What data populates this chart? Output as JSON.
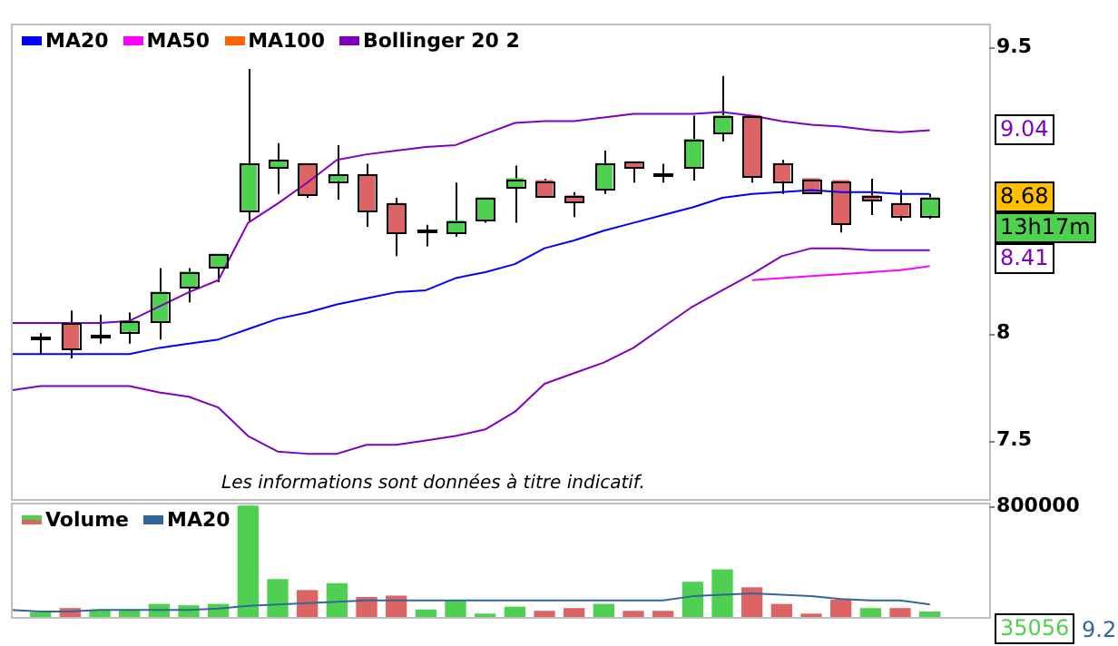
{
  "chart_data": [
    {
      "type": "candlestick",
      "categories": [
        null,
        null,
        null,
        null,
        null,
        null,
        null,
        null,
        null,
        null,
        null,
        null,
        null,
        null,
        null,
        null,
        null,
        null,
        null,
        null,
        null,
        null,
        null,
        null,
        null,
        null,
        null,
        null,
        null,
        null,
        null,
        null,
        null,
        null
      ],
      "ohlc": [
        null,
        [
          7.98,
          8.0,
          7.9,
          7.98
        ],
        [
          8.05,
          8.11,
          7.88,
          7.93
        ],
        [
          7.99,
          8.09,
          7.95,
          7.99
        ],
        [
          8.01,
          8.1,
          7.95,
          8.06
        ],
        [
          8.06,
          8.32,
          7.97,
          8.2
        ],
        [
          8.23,
          8.32,
          8.15,
          8.3
        ],
        [
          8.33,
          8.39,
          8.25,
          8.39
        ],
        [
          8.61,
          9.38,
          8.56,
          8.86
        ],
        [
          8.84,
          8.97,
          8.7,
          8.88
        ],
        [
          8.86,
          8.86,
          8.68,
          8.7
        ],
        [
          8.77,
          8.96,
          8.67,
          8.8
        ],
        [
          8.8,
          8.86,
          8.53,
          8.61
        ],
        [
          8.65,
          8.68,
          8.38,
          8.5
        ],
        [
          8.51,
          8.54,
          8.43,
          8.51
        ],
        [
          8.5,
          8.76,
          8.48,
          8.56
        ],
        [
          8.57,
          8.68,
          8.55,
          8.68
        ],
        [
          8.74,
          8.85,
          8.55,
          8.78
        ],
        [
          8.77,
          8.78,
          8.69,
          8.69
        ],
        [
          8.69,
          8.71,
          8.58,
          8.66
        ],
        [
          8.73,
          8.93,
          8.7,
          8.86
        ],
        [
          8.87,
          8.87,
          8.76,
          8.84
        ],
        [
          8.8,
          8.86,
          8.76,
          8.8
        ],
        [
          8.84,
          9.12,
          8.77,
          8.99
        ],
        [
          9.03,
          9.34,
          8.98,
          9.12
        ],
        [
          9.12,
          9.12,
          8.76,
          8.79
        ],
        [
          8.86,
          8.88,
          8.7,
          8.77
        ],
        [
          8.78,
          8.78,
          8.7,
          8.71
        ],
        [
          8.77,
          8.77,
          8.5,
          8.55
        ],
        [
          8.69,
          8.78,
          8.59,
          8.67
        ],
        [
          8.65,
          8.72,
          8.56,
          8.59
        ],
        [
          8.59,
          8.7,
          8.57,
          8.68
        ],
        null,
        null
      ],
      "colors": [
        null,
        "#000000",
        "#dd6464",
        "#000000",
        "#50d050",
        "#50d050",
        "#50d050",
        "#50d050",
        "#50d050",
        "#50d050",
        "#dd6464",
        "#50d050",
        "#dd6464",
        "#dd6464",
        "#000000",
        "#50d050",
        "#50d050",
        "#50d050",
        "#dd6464",
        "#dd6464",
        "#50d050",
        "#dd6464",
        "#000000",
        "#50d050",
        "#50d050",
        "#dd6464",
        "#dd6464",
        "#dd6464",
        "#dd6464",
        "#dd6464",
        "#dd6464",
        "#50d050",
        null,
        null
      ],
      "series": [
        {
          "name": "MA20",
          "type": "line",
          "color": "#0000ff",
          "values": [
            7.9,
            7.9,
            7.9,
            7.9,
            7.9,
            7.93,
            7.95,
            7.97,
            8.02,
            8.07,
            8.1,
            8.14,
            8.17,
            8.2,
            8.21,
            8.27,
            8.3,
            8.34,
            8.42,
            8.46,
            8.51,
            8.55,
            8.59,
            8.63,
            8.68,
            8.7,
            8.71,
            8.72,
            8.71,
            8.71,
            8.7,
            8.7,
            null,
            null
          ]
        },
        {
          "name": "MA50",
          "type": "line",
          "color": "#ff00ff",
          "values": [
            null,
            null,
            null,
            null,
            null,
            null,
            null,
            null,
            null,
            null,
            null,
            null,
            null,
            null,
            null,
            null,
            null,
            null,
            null,
            null,
            null,
            null,
            null,
            null,
            null,
            8.26,
            8.27,
            8.28,
            8.29,
            8.3,
            8.31,
            8.33,
            null,
            null
          ]
        },
        {
          "name": "MA100",
          "type": "line",
          "color": "#ff6600",
          "values": [
            null,
            null,
            null,
            null,
            null,
            null,
            null,
            null,
            null,
            null,
            null,
            null,
            null,
            null,
            null,
            null,
            null,
            null,
            null,
            null,
            null,
            null,
            null,
            null,
            null,
            null,
            null,
            null,
            null,
            null,
            null,
            null,
            null,
            null
          ]
        },
        {
          "name": "Bollinger 20 2",
          "type": "line",
          "color": "#8000c0",
          "values": [
            8.05,
            8.05,
            8.05,
            8.05,
            8.06,
            8.13,
            8.2,
            8.26,
            8.55,
            8.65,
            8.76,
            8.88,
            8.91,
            8.93,
            8.95,
            8.96,
            9.02,
            9.08,
            9.09,
            9.09,
            9.11,
            9.13,
            9.13,
            9.13,
            9.14,
            9.12,
            9.09,
            9.07,
            9.06,
            9.04,
            9.03,
            9.04,
            null,
            null
          ]
        },
        {
          "type": "line",
          "color": "#8000c0",
          "values": [
            7.73,
            7.75,
            7.75,
            7.75,
            7.75,
            7.72,
            7.7,
            7.65,
            7.52,
            7.45,
            7.44,
            7.44,
            7.48,
            7.48,
            7.5,
            7.52,
            7.55,
            7.63,
            7.76,
            7.81,
            7.86,
            7.93,
            8.03,
            8.13,
            8.21,
            8.29,
            8.38,
            8.42,
            8.42,
            8.41,
            8.41,
            8.41,
            null,
            null
          ]
        }
      ],
      "log": "y",
      "ylim": [
        7.24,
        9.64
      ],
      "yticks": [
        7.5,
        8,
        9.5
      ],
      "grid": false,
      "legend": "top left",
      "tick_labels": "y",
      "annotations": [
        {
          "text": "9.04",
          "y": 9.04
        },
        {
          "text": "8.68",
          "y": 8.68
        },
        "13h17m",
        "8.41",
        "Les informations sont données à titre indicatif."
      ]
    },
    {
      "type": "bar",
      "categories": [
        null,
        null,
        null,
        null,
        null,
        null,
        null,
        null,
        null,
        null,
        null,
        null,
        null,
        null,
        null,
        null,
        null,
        null,
        null,
        null,
        null,
        null,
        null,
        null,
        null,
        null,
        null,
        null,
        null,
        null,
        null,
        null,
        null,
        null
      ],
      "series": [
        {
          "name": "Volume",
          "type": "bar",
          "colors": [
            null,
            "#50d050",
            "#dd6464",
            "#50d050",
            "#50d050",
            "#50d050",
            "#50d050",
            "#50d050",
            "#50d050",
            "#50d050",
            "#dd6464",
            "#50d050",
            "#dd6464",
            "#dd6464",
            "#50d050",
            "#50d050",
            "#50d050",
            "#50d050",
            "#dd6464",
            "#dd6464",
            "#50d050",
            "#dd6464",
            "#dd6464",
            "#50d050",
            "#50d050",
            "#dd6464",
            "#dd6464",
            "#dd6464",
            "#dd6464",
            "#50d050",
            "#dd6464",
            "#50d050",
            null,
            null
          ],
          "values": [
            null,
            30000,
            60000,
            50000,
            50000,
            90000,
            80000,
            90000,
            800000,
            270000,
            190000,
            240000,
            140000,
            150000,
            50000,
            120000,
            20000,
            70000,
            40000,
            60000,
            90000,
            40000,
            40000,
            250000,
            340000,
            210000,
            90000,
            20000,
            120000,
            60000,
            60000,
            35056,
            null,
            null
          ]
        },
        {
          "name": "MA20",
          "type": "line",
          "color": "#336699",
          "values": [
            50000,
            40000,
            40000,
            50000,
            50000,
            50000,
            50000,
            60000,
            80000,
            90000,
            100000,
            110000,
            120000,
            120000,
            120000,
            120000,
            120000,
            120000,
            120000,
            120000,
            120000,
            120000,
            120000,
            150000,
            160000,
            170000,
            160000,
            150000,
            130000,
            120000,
            120000,
            90000,
            null,
            null
          ]
        }
      ],
      "ylim": [
        0,
        826000
      ],
      "yticks": [
        800000
      ],
      "grid": false,
      "legend": "top left",
      "tick_labels": "y",
      "annotations": [
        "35056",
        "9.2"
      ]
    }
  ]
}
